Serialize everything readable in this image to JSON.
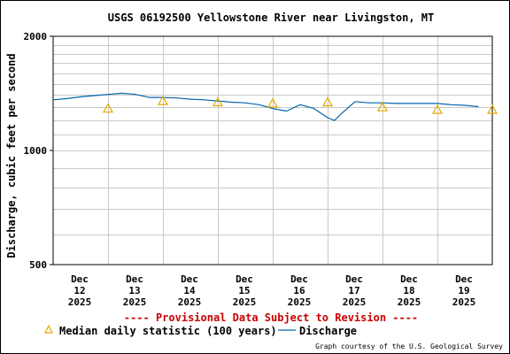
{
  "chart_data": {
    "type": "line",
    "title": "USGS 06192500 Yellowstone River near Livingston, MT",
    "ylabel": "Discharge, cubic feet per second",
    "xlabel": "",
    "y_scale": "log",
    "ylim": [
      500,
      2000
    ],
    "y_ticks": [
      "500",
      "1000",
      "2000"
    ],
    "x_ticks": [
      {
        "day": "Dec",
        "date": "12",
        "year": "2025"
      },
      {
        "day": "Dec",
        "date": "13",
        "year": "2025"
      },
      {
        "day": "Dec",
        "date": "14",
        "year": "2025"
      },
      {
        "day": "Dec",
        "date": "15",
        "year": "2025"
      },
      {
        "day": "Dec",
        "date": "16",
        "year": "2025"
      },
      {
        "day": "Dec",
        "date": "17",
        "year": "2025"
      },
      {
        "day": "Dec",
        "date": "18",
        "year": "2025"
      },
      {
        "day": "Dec",
        "date": "19",
        "year": "2025"
      }
    ],
    "grid": true,
    "series": [
      {
        "name": "Discharge",
        "color": "#0066aa",
        "style": "line",
        "x": [
          "2025-12-11 12:00",
          "2025-12-11 18:00",
          "2025-12-12 00:00",
          "2025-12-12 06:00",
          "2025-12-12 12:00",
          "2025-12-12 18:00",
          "2025-12-13 00:00",
          "2025-12-13 06:00",
          "2025-12-13 12:00",
          "2025-12-13 18:00",
          "2025-12-14 00:00",
          "2025-12-14 06:00",
          "2025-12-14 12:00",
          "2025-12-14 18:00",
          "2025-12-15 00:00",
          "2025-12-15 06:00",
          "2025-12-15 12:00",
          "2025-12-15 18:00",
          "2025-12-16 00:00",
          "2025-12-16 06:00",
          "2025-12-16 12:00",
          "2025-12-16 15:00",
          "2025-12-16 18:00",
          "2025-12-17 00:00",
          "2025-12-17 06:00",
          "2025-12-17 12:00",
          "2025-12-17 18:00",
          "2025-12-18 00:00",
          "2025-12-18 06:00",
          "2025-12-18 12:00",
          "2025-12-18 18:00",
          "2025-12-19 00:00",
          "2025-12-19 06:00"
        ],
        "y": [
          1360,
          1370,
          1385,
          1395,
          1405,
          1415,
          1405,
          1380,
          1380,
          1375,
          1365,
          1360,
          1350,
          1340,
          1335,
          1320,
          1290,
          1270,
          1320,
          1290,
          1220,
          1200,
          1250,
          1345,
          1335,
          1335,
          1330,
          1330,
          1330,
          1330,
          1320,
          1315,
          1305
        ]
      },
      {
        "name": "Median daily statistic (100 years)",
        "color": "#e6a800",
        "style": "triangle",
        "x": [
          "2025-12-12 12:00",
          "2025-12-13 12:00",
          "2025-12-14 12:00",
          "2025-12-15 12:00",
          "2025-12-16 12:00",
          "2025-12-17 12:00",
          "2025-12-18 12:00",
          "2025-12-19 12:00"
        ],
        "y": [
          1290,
          1350,
          1340,
          1330,
          1340,
          1300,
          1280,
          1280
        ]
      }
    ],
    "annotations": [
      "---- Provisional Data Subject to Revision ----"
    ]
  },
  "legend": {
    "median_label": "Median daily statistic (100 years)",
    "discharge_label": "Discharge"
  },
  "provisional_note": "---- Provisional Data Subject to Revision ----",
  "credit": "Graph courtesy of the U.S. Geological Survey"
}
